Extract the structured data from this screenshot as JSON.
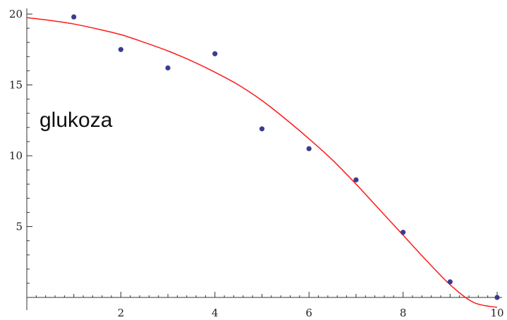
{
  "chart_data": {
    "type": "scatter",
    "title": "",
    "xlabel": "",
    "ylabel": "",
    "xlim": [
      0,
      10
    ],
    "ylim": [
      -0.9,
      20.4
    ],
    "x_ticks": [
      2,
      4,
      6,
      8,
      10
    ],
    "y_ticks": [
      5,
      10,
      15,
      20
    ],
    "grid": false,
    "annotation": "glukoza",
    "point_color": "#3b3b8f",
    "curve_color": "#ff1a1a",
    "series": [
      {
        "type": "scatter",
        "x": [
          1,
          2,
          3,
          4,
          5,
          6,
          7,
          8,
          9,
          10
        ],
        "y": [
          19.8,
          17.5,
          16.2,
          17.2,
          11.9,
          10.5,
          8.3,
          4.6,
          1.1,
          0.0
        ]
      },
      {
        "type": "line",
        "x": [
          0,
          0.5,
          1,
          1.5,
          2,
          2.5,
          3,
          3.5,
          4,
          4.5,
          5,
          5.5,
          6,
          6.5,
          7,
          7.5,
          8,
          8.5,
          9,
          9.5,
          10
        ],
        "y": [
          19.75,
          19.55,
          19.3,
          18.95,
          18.55,
          18.0,
          17.4,
          16.7,
          15.9,
          15.0,
          13.9,
          12.6,
          11.2,
          9.7,
          8.0,
          6.2,
          4.4,
          2.6,
          0.9,
          -0.35,
          -0.7
        ]
      }
    ]
  }
}
